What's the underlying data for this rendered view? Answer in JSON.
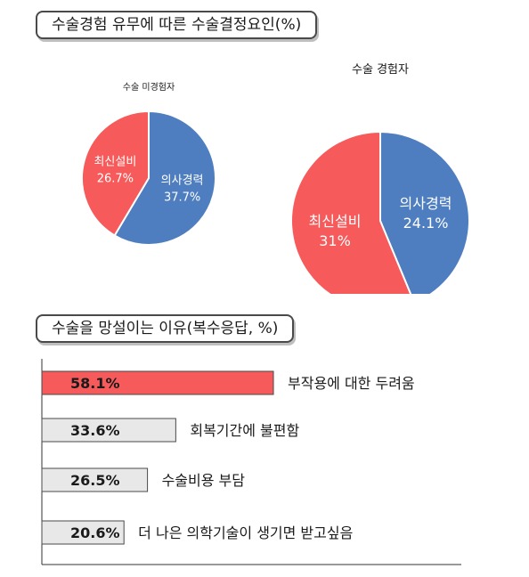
{
  "section1": {
    "title": "수술경험 유무에 따른 수술결정요인(%)"
  },
  "section2": {
    "title": "수술을 망설이는 이유(복수응답, %)"
  },
  "colors": {
    "red": "#f65a5a",
    "blue": "#4e7ec0",
    "gray_fill": "#e8e8e8",
    "border": "#4a4a4a"
  },
  "chart_data": [
    {
      "type": "pie",
      "title": "수술 미경험자",
      "slices": [
        {
          "label": "의사경력",
          "value": 37.7,
          "value_text": "37.7%",
          "color": "#4e7ec0"
        },
        {
          "label": "최신설비",
          "value": 26.7,
          "value_text": "26.7%",
          "color": "#f65a5a"
        }
      ]
    },
    {
      "type": "pie",
      "title": "수술 경험자",
      "slices": [
        {
          "label": "의사경력",
          "value": 24.1,
          "value_text": "24.1%",
          "color": "#4e7ec0"
        },
        {
          "label": "최신설비",
          "value": 31,
          "value_text": "31%",
          "color": "#f65a5a"
        }
      ]
    },
    {
      "type": "bar",
      "orientation": "horizontal",
      "categories": [
        "부작용에 대한 두려움",
        "회복기간에 불편함",
        "수술비용 부담",
        "더 나은 의학기술이 생기면 받고싶음"
      ],
      "values": [
        58.1,
        33.6,
        26.5,
        20.6
      ],
      "value_labels": [
        "58.1%",
        "33.6%",
        "26.5%",
        "20.6%"
      ],
      "highlight_index": 0
    }
  ]
}
